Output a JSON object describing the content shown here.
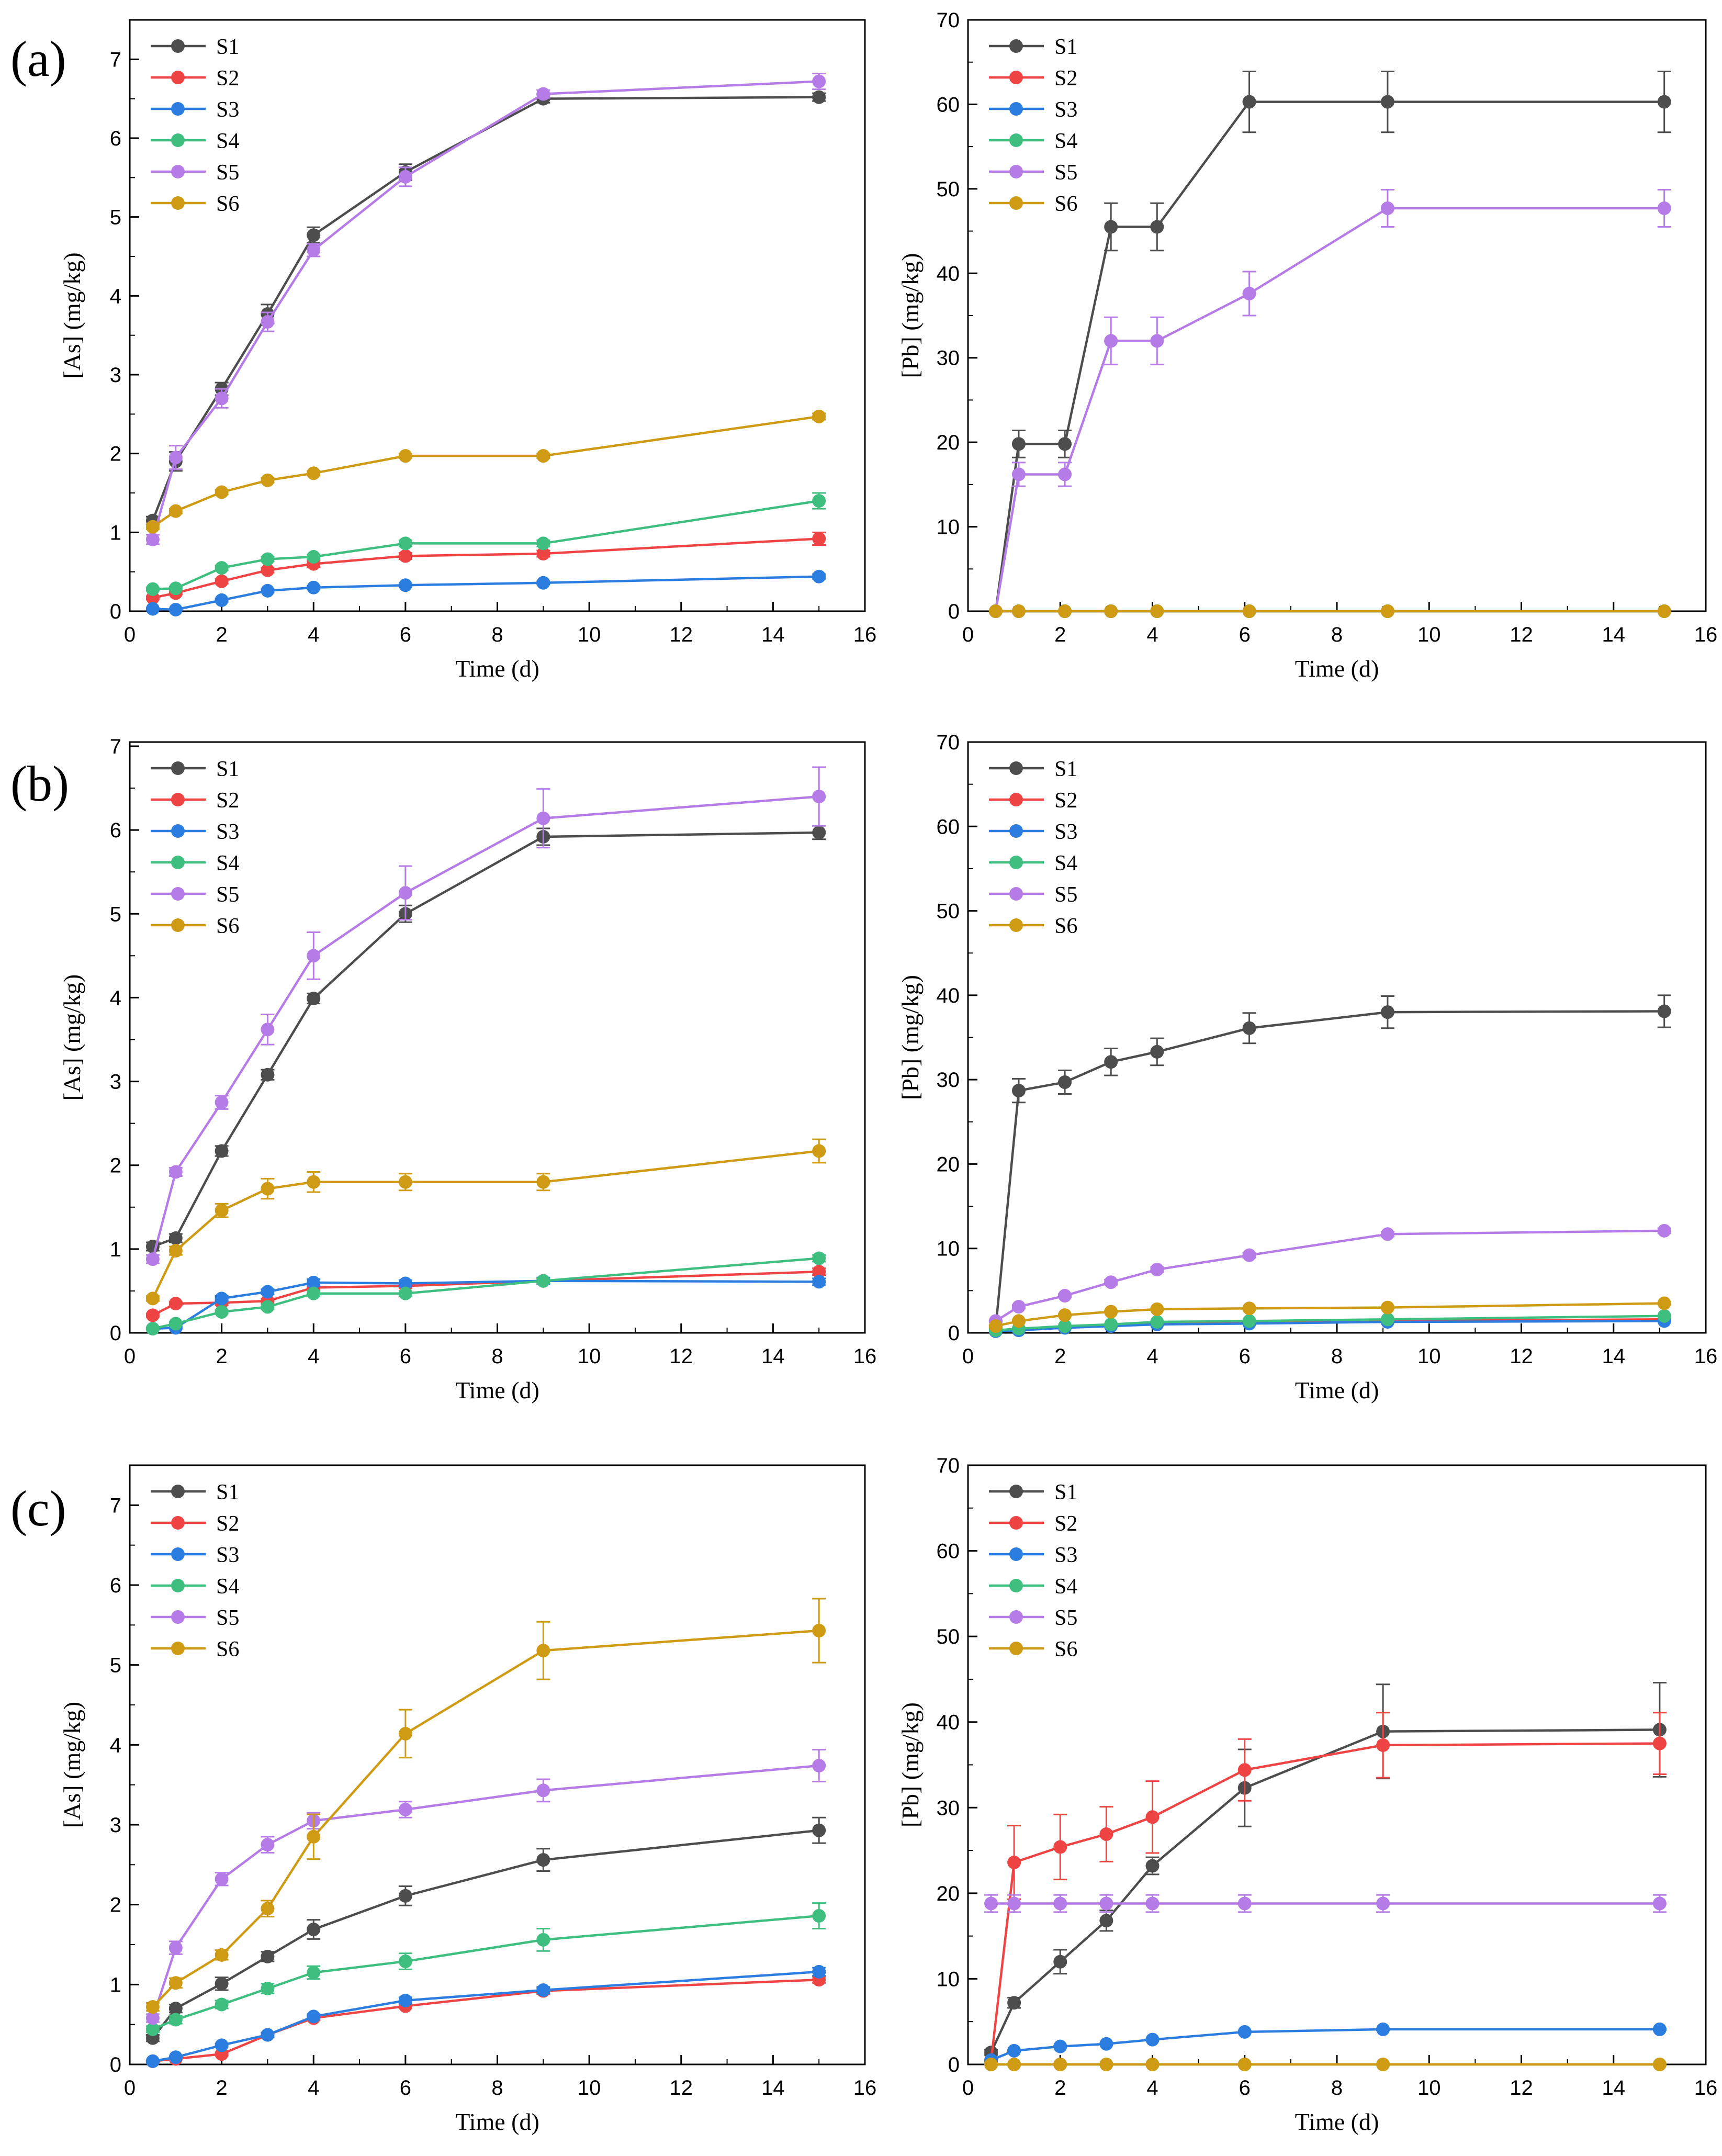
{
  "figure": {
    "series_colors": {
      "S1": "#4d4d4d",
      "S2": "#ef4444",
      "S3": "#2b7de0",
      "S4": "#3fbf7f",
      "S5": "#b57be6",
      "S6": "#cf9b14"
    }
  },
  "chart_data": [
    {
      "id": "a-as",
      "panel_label": "(a)",
      "type": "line",
      "xlabel": "Time (d)",
      "ylabel": "[As] (mg/kg)",
      "xlim": [
        0,
        16
      ],
      "ylim": [
        0,
        7.5
      ],
      "xticks": [
        0,
        2,
        4,
        6,
        8,
        10,
        12,
        14,
        16
      ],
      "yticks": [
        0,
        1,
        2,
        3,
        4,
        5,
        6,
        7
      ],
      "x": [
        0.5,
        1,
        2,
        3,
        4,
        6,
        9,
        15
      ],
      "legend": [
        "S1",
        "S2",
        "S3",
        "S4",
        "S5",
        "S6"
      ],
      "series": [
        {
          "name": "S1",
          "values": [
            1.15,
            1.9,
            2.82,
            3.77,
            4.77,
            5.57,
            6.5,
            6.52
          ],
          "errors": [
            0.05,
            0.12,
            0.08,
            0.12,
            0.1,
            0.1,
            0.05,
            0.05
          ]
        },
        {
          "name": "S2",
          "values": [
            0.17,
            0.23,
            0.38,
            0.52,
            0.6,
            0.7,
            0.73,
            0.92
          ],
          "errors": [
            0.02,
            0.02,
            0.03,
            0.03,
            0.04,
            0.04,
            0.04,
            0.08
          ]
        },
        {
          "name": "S3",
          "values": [
            0.03,
            0.02,
            0.14,
            0.26,
            0.3,
            0.33,
            0.36,
            0.44
          ],
          "errors": [
            0.01,
            0.01,
            0.02,
            0.02,
            0.02,
            0.02,
            0.02,
            0.03
          ]
        },
        {
          "name": "S4",
          "values": [
            0.28,
            0.29,
            0.55,
            0.66,
            0.69,
            0.86,
            0.86,
            1.4
          ],
          "errors": [
            0.02,
            0.02,
            0.03,
            0.03,
            0.03,
            0.04,
            0.04,
            0.1
          ]
        },
        {
          "name": "S5",
          "values": [
            0.91,
            1.95,
            2.7,
            3.67,
            4.58,
            5.51,
            6.56,
            6.72
          ],
          "errors": [
            0.06,
            0.15,
            0.12,
            0.12,
            0.08,
            0.12,
            0.05,
            0.1
          ]
        },
        {
          "name": "S6",
          "values": [
            1.07,
            1.27,
            1.51,
            1.66,
            1.75,
            1.97,
            1.97,
            2.47
          ],
          "errors": [
            0.03,
            0.03,
            0.03,
            0.03,
            0.03,
            0.03,
            0.03,
            0.04
          ]
        }
      ]
    },
    {
      "id": "a-pb",
      "panel_label": "",
      "type": "line",
      "xlabel": "Time (d)",
      "ylabel": "[Pb] (mg/kg)",
      "xlim": [
        0,
        16
      ],
      "ylim": [
        0,
        70
      ],
      "xticks": [
        0,
        2,
        4,
        6,
        8,
        10,
        12,
        14,
        16
      ],
      "yticks": [
        0,
        10,
        20,
        30,
        40,
        50,
        60,
        70
      ],
      "x": [
        0.6,
        1.1,
        2.1,
        3.1,
        4.1,
        6.1,
        9.1,
        15.1
      ],
      "legend": [
        "S1",
        "S2",
        "S3",
        "S4",
        "S5",
        "S6"
      ],
      "series": [
        {
          "name": "S1",
          "values": [
            0.0,
            19.8,
            19.8,
            45.5,
            45.5,
            60.3,
            60.3,
            60.3
          ],
          "errors": [
            0,
            1.6,
            1.6,
            2.8,
            2.8,
            3.6,
            3.6,
            3.6
          ]
        },
        {
          "name": "S2",
          "values": [
            0,
            0,
            0,
            0,
            0,
            0,
            0,
            0
          ],
          "errors": [
            0,
            0,
            0,
            0,
            0,
            0,
            0,
            0
          ]
        },
        {
          "name": "S3",
          "values": [
            0,
            0,
            0,
            0,
            0,
            0,
            0,
            0
          ],
          "errors": [
            0,
            0,
            0,
            0,
            0,
            0,
            0,
            0
          ]
        },
        {
          "name": "S4",
          "values": [
            0,
            0,
            0,
            0,
            0,
            0,
            0,
            0
          ],
          "errors": [
            0,
            0,
            0,
            0,
            0,
            0,
            0,
            0
          ]
        },
        {
          "name": "S5",
          "values": [
            0.0,
            16.2,
            16.2,
            32.0,
            32.0,
            37.6,
            47.7,
            47.7
          ],
          "errors": [
            0,
            1.4,
            1.4,
            2.8,
            2.8,
            2.6,
            2.2,
            2.2
          ]
        },
        {
          "name": "S6",
          "values": [
            0,
            0,
            0,
            0,
            0,
            0,
            0,
            0
          ],
          "errors": [
            0,
            0,
            0,
            0,
            0,
            0,
            0,
            0
          ]
        }
      ]
    },
    {
      "id": "b-as",
      "panel_label": "(b)",
      "type": "line",
      "xlabel": "Time (d)",
      "ylabel": "[As] (mg/kg)",
      "xlim": [
        0,
        16
      ],
      "ylim": [
        0,
        7.05
      ],
      "xticks": [
        0,
        2,
        4,
        6,
        8,
        10,
        12,
        14,
        16
      ],
      "yticks": [
        0,
        1,
        2,
        3,
        4,
        5,
        6,
        7
      ],
      "x": [
        0.5,
        1,
        2,
        3,
        4,
        6,
        9,
        15
      ],
      "legend": [
        "S1",
        "S2",
        "S3",
        "S4",
        "S5",
        "S6"
      ],
      "series": [
        {
          "name": "S1",
          "values": [
            1.03,
            1.13,
            2.17,
            3.08,
            3.99,
            5.0,
            5.92,
            5.97
          ],
          "errors": [
            0.05,
            0.05,
            0.06,
            0.06,
            0.06,
            0.1,
            0.1,
            0.08
          ]
        },
        {
          "name": "S2",
          "values": [
            0.21,
            0.35,
            0.36,
            0.38,
            0.54,
            0.56,
            0.62,
            0.73
          ],
          "errors": [
            0.02,
            0.02,
            0.03,
            0.03,
            0.03,
            0.03,
            0.03,
            0.04
          ]
        },
        {
          "name": "S3",
          "values": [
            0.05,
            0.06,
            0.41,
            0.49,
            0.6,
            0.59,
            0.62,
            0.61
          ],
          "errors": [
            0.01,
            0.01,
            0.03,
            0.03,
            0.04,
            0.04,
            0.04,
            0.04
          ]
        },
        {
          "name": "S4",
          "values": [
            0.05,
            0.11,
            0.25,
            0.31,
            0.47,
            0.47,
            0.62,
            0.89
          ],
          "errors": [
            0.01,
            0.02,
            0.02,
            0.03,
            0.03,
            0.03,
            0.03,
            0.04
          ]
        },
        {
          "name": "S5",
          "values": [
            0.88,
            1.92,
            2.75,
            3.62,
            4.5,
            5.25,
            6.14,
            6.4
          ],
          "errors": [
            0.05,
            0.05,
            0.08,
            0.18,
            0.28,
            0.32,
            0.35,
            0.35
          ]
        },
        {
          "name": "S6",
          "values": [
            0.41,
            0.98,
            1.46,
            1.72,
            1.8,
            1.8,
            1.8,
            2.17
          ],
          "errors": [
            0.03,
            0.05,
            0.08,
            0.12,
            0.12,
            0.1,
            0.1,
            0.14
          ]
        }
      ]
    },
    {
      "id": "b-pb",
      "panel_label": "",
      "type": "line",
      "xlabel": "Time (d)",
      "ylabel": "[Pb] (mg/kg)",
      "xlim": [
        0,
        16
      ],
      "ylim": [
        0,
        70
      ],
      "xticks": [
        0,
        2,
        4,
        6,
        8,
        10,
        12,
        14,
        16
      ],
      "yticks": [
        0,
        10,
        20,
        30,
        40,
        50,
        60,
        70
      ],
      "x": [
        0.6,
        1.1,
        2.1,
        3.1,
        4.1,
        6.1,
        9.1,
        15.1
      ],
      "legend": [
        "S1",
        "S2",
        "S3",
        "S4",
        "S5",
        "S6"
      ],
      "series": [
        {
          "name": "S1",
          "values": [
            0.6,
            28.7,
            29.7,
            32.1,
            33.3,
            36.1,
            38.0,
            38.1
          ],
          "errors": [
            0.2,
            1.4,
            1.4,
            1.6,
            1.6,
            1.8,
            1.9,
            1.9
          ]
        },
        {
          "name": "S2",
          "values": [
            0.2,
            0.4,
            0.7,
            0.9,
            1.1,
            1.2,
            1.4,
            1.6
          ],
          "errors": [
            0,
            0,
            0,
            0,
            0,
            0,
            0,
            0
          ]
        },
        {
          "name": "S3",
          "values": [
            0.2,
            0.3,
            0.6,
            0.8,
            1.0,
            1.1,
            1.3,
            1.4
          ],
          "errors": [
            0,
            0,
            0,
            0,
            0,
            0,
            0,
            0
          ]
        },
        {
          "name": "S4",
          "values": [
            0.3,
            0.5,
            0.8,
            1.0,
            1.3,
            1.4,
            1.6,
            2.0
          ],
          "errors": [
            0,
            0,
            0,
            0,
            0,
            0,
            0,
            0
          ]
        },
        {
          "name": "S5",
          "values": [
            1.4,
            3.1,
            4.4,
            6.0,
            7.5,
            9.2,
            11.7,
            12.1
          ],
          "errors": [
            0.1,
            0.2,
            0.2,
            0.3,
            0.3,
            0.3,
            0.3,
            0.3
          ]
        },
        {
          "name": "S6",
          "values": [
            0.8,
            1.4,
            2.1,
            2.5,
            2.8,
            2.9,
            3.0,
            3.5
          ],
          "errors": [
            0.1,
            0.1,
            0.1,
            0.1,
            0.1,
            0.1,
            0.1,
            0.1
          ]
        }
      ]
    },
    {
      "id": "c-as",
      "panel_label": "(c)",
      "type": "line",
      "xlabel": "Time (d)",
      "ylabel": "[As] (mg/kg)",
      "xlim": [
        0,
        16
      ],
      "ylim": [
        0,
        7.5
      ],
      "xticks": [
        0,
        2,
        4,
        6,
        8,
        10,
        12,
        14,
        16
      ],
      "yticks": [
        0,
        1,
        2,
        3,
        4,
        5,
        6,
        7
      ],
      "x": [
        0.5,
        1,
        2,
        3,
        4,
        6,
        9,
        15
      ],
      "legend": [
        "S1",
        "S2",
        "S3",
        "S4",
        "S5",
        "S6"
      ],
      "series": [
        {
          "name": "S1",
          "values": [
            0.33,
            0.7,
            1.01,
            1.35,
            1.69,
            2.11,
            2.56,
            2.93
          ],
          "errors": [
            0.04,
            0.05,
            0.08,
            0.06,
            0.12,
            0.12,
            0.14,
            0.16
          ]
        },
        {
          "name": "S2",
          "values": [
            0.04,
            0.07,
            0.13,
            0.37,
            0.58,
            0.73,
            0.92,
            1.06
          ],
          "errors": [
            0.01,
            0.01,
            0.02,
            0.03,
            0.03,
            0.03,
            0.04,
            0.04
          ]
        },
        {
          "name": "S3",
          "values": [
            0.04,
            0.09,
            0.24,
            0.37,
            0.6,
            0.8,
            0.93,
            1.16
          ],
          "errors": [
            0.01,
            0.01,
            0.02,
            0.03,
            0.03,
            0.04,
            0.04,
            0.05
          ]
        },
        {
          "name": "S4",
          "values": [
            0.44,
            0.56,
            0.75,
            0.95,
            1.15,
            1.29,
            1.56,
            1.86
          ],
          "errors": [
            0.04,
            0.05,
            0.05,
            0.06,
            0.08,
            0.1,
            0.14,
            0.16
          ]
        },
        {
          "name": "S5",
          "values": [
            0.58,
            1.46,
            2.32,
            2.75,
            3.05,
            3.19,
            3.43,
            3.74
          ],
          "errors": [
            0.05,
            0.08,
            0.08,
            0.1,
            0.1,
            0.1,
            0.14,
            0.2
          ]
        },
        {
          "name": "S6",
          "values": [
            0.72,
            1.02,
            1.37,
            1.95,
            2.85,
            4.14,
            5.18,
            5.43
          ],
          "errors": [
            0.05,
            0.06,
            0.06,
            0.1,
            0.28,
            0.3,
            0.36,
            0.4
          ]
        }
      ]
    },
    {
      "id": "c-pb",
      "panel_label": "",
      "type": "line",
      "xlabel": "Time (d)",
      "ylabel": "[Pb] (mg/kg)",
      "xlim": [
        0,
        16
      ],
      "ylim": [
        0,
        70
      ],
      "xticks": [
        0,
        2,
        4,
        6,
        8,
        10,
        12,
        14,
        16
      ],
      "yticks": [
        0,
        10,
        20,
        30,
        40,
        50,
        60,
        70
      ],
      "x": [
        0.5,
        1,
        2,
        3,
        4,
        6,
        9,
        15
      ],
      "legend": [
        "S1",
        "S2",
        "S3",
        "S4",
        "S5",
        "S6"
      ],
      "series": [
        {
          "name": "S1",
          "values": [
            1.4,
            7.2,
            12.0,
            16.8,
            23.2,
            32.3,
            38.9,
            39.1
          ],
          "errors": [
            0.3,
            0.6,
            1.4,
            1.2,
            1.0,
            4.5,
            5.5,
            5.5
          ]
        },
        {
          "name": "S2",
          "values": [
            0.4,
            23.6,
            25.4,
            26.9,
            28.9,
            34.4,
            37.3,
            37.5
          ],
          "errors": [
            0.1,
            4.3,
            3.8,
            3.2,
            4.2,
            3.6,
            3.8,
            3.6
          ]
        },
        {
          "name": "S3",
          "values": [
            0.5,
            1.6,
            2.1,
            2.4,
            2.9,
            3.8,
            4.1,
            4.1
          ],
          "errors": [
            0,
            0.1,
            0.1,
            0.1,
            0.1,
            0.1,
            0.1,
            0.1
          ]
        },
        {
          "name": "S4",
          "values": [
            0,
            0,
            0,
            0,
            0,
            0,
            0,
            0
          ],
          "errors": [
            0,
            0,
            0,
            0,
            0,
            0,
            0,
            0
          ]
        },
        {
          "name": "S5",
          "values": [
            18.8,
            18.8,
            18.8,
            18.8,
            18.8,
            18.8,
            18.8,
            18.8
          ],
          "errors": [
            1.0,
            1.0,
            1.0,
            1.0,
            1.0,
            1.0,
            1.0,
            1.0
          ]
        },
        {
          "name": "S6",
          "values": [
            0,
            0,
            0,
            0,
            0,
            0,
            0,
            0
          ],
          "errors": [
            0,
            0,
            0,
            0,
            0,
            0,
            0,
            0
          ]
        }
      ]
    }
  ]
}
